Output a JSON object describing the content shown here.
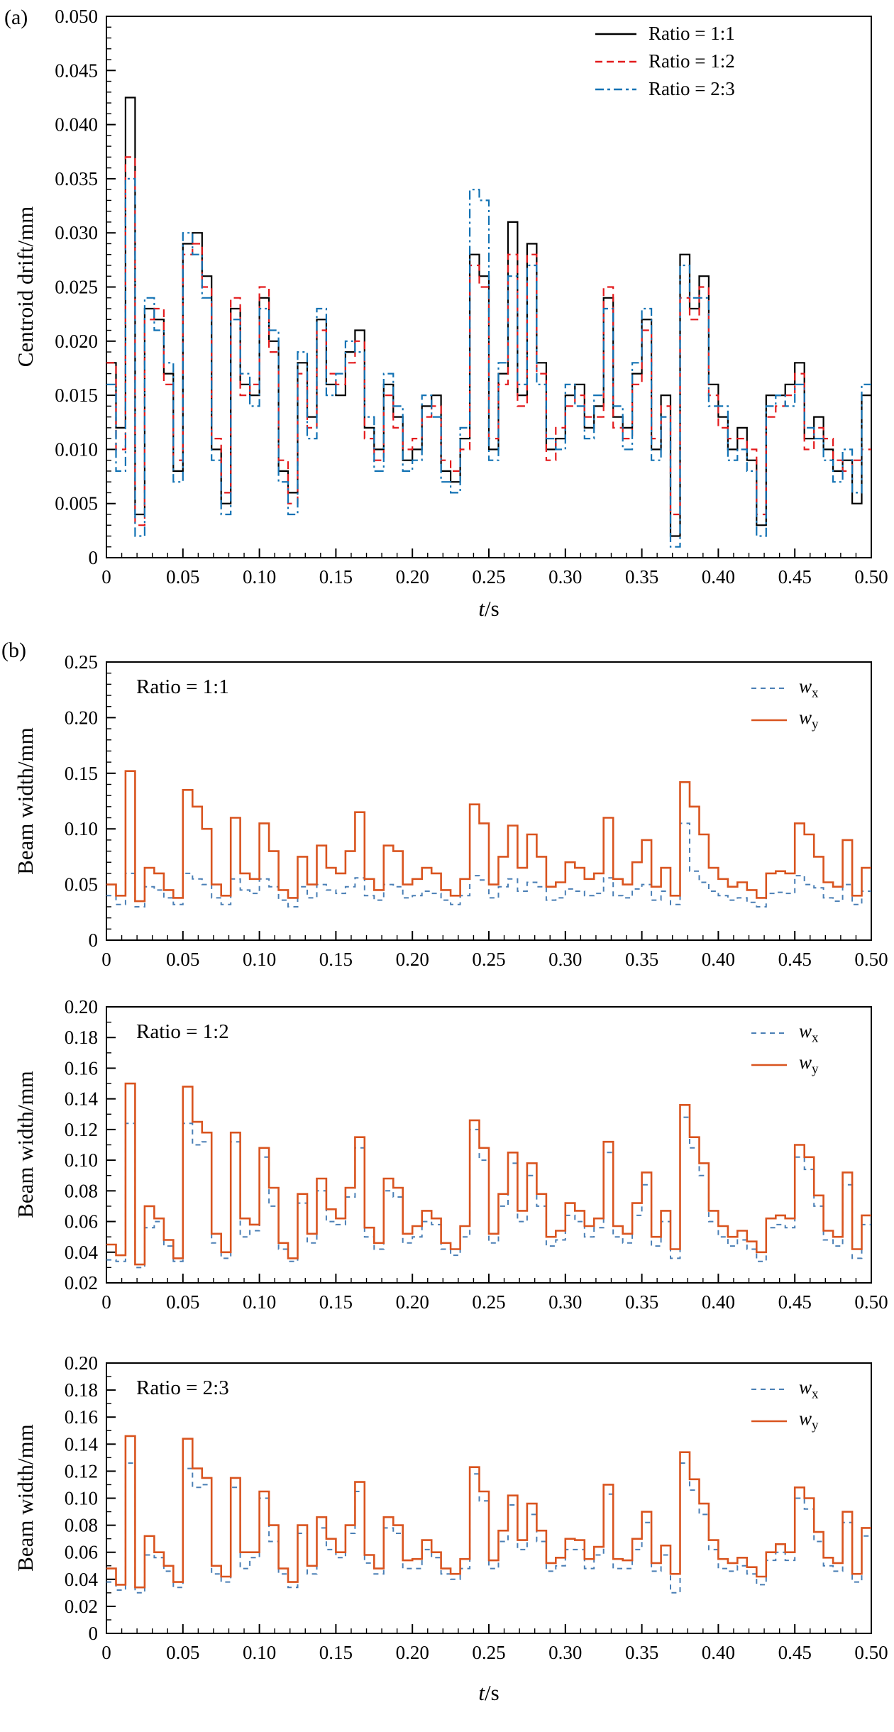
{
  "panels": {
    "a": {
      "label": "(a)"
    },
    "b": {
      "label": "(b)"
    },
    "xlabel": {
      "italic": "t",
      "rest": "/s"
    }
  },
  "colors": {
    "black": "#000000",
    "red": "#e31a1c",
    "blue": "#1272b4",
    "wx_blue": "#4a7fb5",
    "wy_orange": "#d9541f"
  },
  "chart_data": [
    {
      "id": "a",
      "type": "line",
      "step": true,
      "ylabel": "Centroid drift/mm",
      "xlabel": "t/s",
      "xlim": [
        0,
        0.5
      ],
      "ylim": [
        0,
        0.05
      ],
      "x_step": 0.00625,
      "xticks": [
        "0",
        "0.05",
        "0.10",
        "0.15",
        "0.20",
        "0.25",
        "0.30",
        "0.35",
        "0.40",
        "0.45",
        "0.50"
      ],
      "yticks": [
        "0",
        "0.005",
        "0.010",
        "0.015",
        "0.020",
        "0.025",
        "0.030",
        "0.035",
        "0.040",
        "0.045",
        "0.050"
      ],
      "legend_position": "top-right",
      "series": [
        {
          "name": "Ratio = 1:1",
          "color": "#000000",
          "dash": "",
          "legend_dash": "",
          "width": 2.2,
          "values": [
            0.018,
            0.012,
            0.0425,
            0.004,
            0.023,
            0.022,
            0.017,
            0.008,
            0.029,
            0.03,
            0.026,
            0.01,
            0.005,
            0.023,
            0.016,
            0.015,
            0.024,
            0.02,
            0.008,
            0.006,
            0.018,
            0.013,
            0.022,
            0.016,
            0.015,
            0.019,
            0.021,
            0.012,
            0.01,
            0.016,
            0.013,
            0.009,
            0.01,
            0.014,
            0.015,
            0.008,
            0.007,
            0.011,
            0.028,
            0.026,
            0.01,
            0.017,
            0.031,
            0.015,
            0.029,
            0.018,
            0.01,
            0.011,
            0.015,
            0.016,
            0.012,
            0.014,
            0.024,
            0.013,
            0.012,
            0.017,
            0.022,
            0.01,
            0.015,
            0.002,
            0.028,
            0.023,
            0.026,
            0.016,
            0.013,
            0.01,
            0.012,
            0.009,
            0.003,
            0.015,
            0.015,
            0.016,
            0.018,
            0.011,
            0.013,
            0.01,
            0.008,
            0.009,
            0.005,
            0.015
          ]
        },
        {
          "name": "Ratio = 1:2",
          "color": "#e31a1c",
          "dash": "11 7",
          "legend_dash": "10 6",
          "width": 2.2,
          "values": [
            0.018,
            0.01,
            0.037,
            0.003,
            0.022,
            0.023,
            0.016,
            0.009,
            0.028,
            0.029,
            0.025,
            0.011,
            0.006,
            0.024,
            0.015,
            0.016,
            0.025,
            0.019,
            0.009,
            0.005,
            0.017,
            0.012,
            0.021,
            0.017,
            0.016,
            0.018,
            0.02,
            0.011,
            0.009,
            0.015,
            0.012,
            0.01,
            0.011,
            0.013,
            0.014,
            0.009,
            0.008,
            0.01,
            0.027,
            0.025,
            0.011,
            0.016,
            0.028,
            0.014,
            0.028,
            0.017,
            0.009,
            0.012,
            0.014,
            0.015,
            0.013,
            0.013,
            0.025,
            0.012,
            0.011,
            0.016,
            0.021,
            0.011,
            0.014,
            0.004,
            0.024,
            0.022,
            0.025,
            0.015,
            0.012,
            0.011,
            0.011,
            0.01,
            0.004,
            0.013,
            0.014,
            0.015,
            0.017,
            0.01,
            0.012,
            0.011,
            0.009,
            0.008,
            0.009,
            0.01
          ]
        },
        {
          "name": "Ratio = 2:3",
          "color": "#1272b4",
          "dash": "13 5 3 5",
          "legend_dash": "12 5 4 5",
          "width": 2.2,
          "values": [
            0.016,
            0.008,
            0.035,
            0.002,
            0.024,
            0.021,
            0.018,
            0.007,
            0.03,
            0.028,
            0.024,
            0.009,
            0.004,
            0.022,
            0.017,
            0.014,
            0.023,
            0.021,
            0.007,
            0.004,
            0.019,
            0.011,
            0.023,
            0.015,
            0.017,
            0.02,
            0.019,
            0.013,
            0.008,
            0.017,
            0.014,
            0.008,
            0.009,
            0.015,
            0.013,
            0.007,
            0.006,
            0.012,
            0.034,
            0.033,
            0.009,
            0.018,
            0.026,
            0.016,
            0.027,
            0.016,
            0.011,
            0.01,
            0.016,
            0.014,
            0.011,
            0.015,
            0.023,
            0.014,
            0.01,
            0.018,
            0.023,
            0.009,
            0.013,
            0.001,
            0.027,
            0.024,
            0.024,
            0.014,
            0.014,
            0.009,
            0.01,
            0.008,
            0.002,
            0.014,
            0.015,
            0.014,
            0.016,
            0.012,
            0.011,
            0.009,
            0.007,
            0.01,
            0.006,
            0.016
          ]
        }
      ]
    },
    {
      "id": "b1",
      "type": "line",
      "step": true,
      "annotation": "Ratio = 1:1",
      "ylabel": "Beam width/mm",
      "xlabel": "t/s",
      "xlim": [
        0,
        0.5
      ],
      "ylim": [
        0,
        0.25
      ],
      "x_step": 0.00625,
      "xticks": [
        "0",
        "0.05",
        "0.10",
        "0.15",
        "0.20",
        "0.25",
        "0.30",
        "0.35",
        "0.40",
        "0.45",
        "0.50"
      ],
      "yticks": [
        "0",
        "0.05",
        "0.10",
        "0.15",
        "0.20",
        "0.25"
      ],
      "legend_position": "top-right",
      "series": [
        {
          "name": "wx",
          "label_base": "w",
          "label_sub": "x",
          "color": "#4a7fb5",
          "dash": "7 6",
          "legend_dash": "7 6",
          "width": 2,
          "values": [
            0.04,
            0.032,
            0.06,
            0.03,
            0.048,
            0.045,
            0.038,
            0.032,
            0.06,
            0.055,
            0.05,
            0.038,
            0.032,
            0.055,
            0.045,
            0.042,
            0.055,
            0.048,
            0.036,
            0.03,
            0.048,
            0.038,
            0.05,
            0.045,
            0.042,
            0.048,
            0.056,
            0.04,
            0.036,
            0.05,
            0.048,
            0.038,
            0.04,
            0.044,
            0.042,
            0.036,
            0.032,
            0.04,
            0.058,
            0.054,
            0.038,
            0.048,
            0.055,
            0.044,
            0.052,
            0.048,
            0.036,
            0.038,
            0.046,
            0.044,
            0.04,
            0.042,
            0.056,
            0.04,
            0.038,
            0.046,
            0.05,
            0.036,
            0.044,
            0.032,
            0.105,
            0.062,
            0.052,
            0.044,
            0.04,
            0.036,
            0.038,
            0.034,
            0.03,
            0.042,
            0.043,
            0.042,
            0.058,
            0.05,
            0.047,
            0.038,
            0.035,
            0.05,
            0.032,
            0.044
          ]
        },
        {
          "name": "wy",
          "label_base": "w",
          "label_sub": "y",
          "color": "#d9541f",
          "dash": "",
          "legend_dash": "",
          "width": 2.6,
          "values": [
            0.05,
            0.04,
            0.152,
            0.035,
            0.065,
            0.06,
            0.045,
            0.038,
            0.135,
            0.12,
            0.1,
            0.05,
            0.04,
            0.11,
            0.06,
            0.055,
            0.105,
            0.08,
            0.045,
            0.038,
            0.075,
            0.05,
            0.085,
            0.065,
            0.06,
            0.08,
            0.115,
            0.055,
            0.045,
            0.085,
            0.08,
            0.05,
            0.055,
            0.065,
            0.06,
            0.045,
            0.04,
            0.055,
            0.122,
            0.105,
            0.05,
            0.075,
            0.103,
            0.065,
            0.095,
            0.075,
            0.048,
            0.052,
            0.07,
            0.065,
            0.055,
            0.06,
            0.11,
            0.055,
            0.05,
            0.07,
            0.09,
            0.048,
            0.065,
            0.04,
            0.142,
            0.12,
            0.095,
            0.065,
            0.055,
            0.048,
            0.052,
            0.045,
            0.038,
            0.06,
            0.062,
            0.06,
            0.105,
            0.095,
            0.075,
            0.052,
            0.048,
            0.09,
            0.04,
            0.065
          ]
        }
      ]
    },
    {
      "id": "b2",
      "type": "line",
      "step": true,
      "annotation": "Ratio = 1:2",
      "ylabel": "Beam width/mm",
      "xlabel": "t/s",
      "xlim": [
        0,
        0.5
      ],
      "ylim": [
        0.02,
        0.2
      ],
      "x_step": 0.00625,
      "xticks": [
        "0",
        "0.05",
        "0.10",
        "0.15",
        "0.20",
        "0.25",
        "0.30",
        "0.35",
        "0.40",
        "0.45",
        "0.50"
      ],
      "yticks": [
        "0.02",
        "0.04",
        "0.06",
        "0.08",
        "0.10",
        "0.12",
        "0.14",
        "0.16",
        "0.18",
        "0.20"
      ],
      "legend_position": "top-right",
      "series": [
        {
          "name": "wx",
          "label_base": "w",
          "label_sub": "x",
          "color": "#4a7fb5",
          "dash": "7 6",
          "legend_dash": "7 6",
          "width": 2,
          "values": [
            0.035,
            0.034,
            0.124,
            0.03,
            0.056,
            0.06,
            0.044,
            0.034,
            0.124,
            0.11,
            0.112,
            0.046,
            0.036,
            0.112,
            0.05,
            0.054,
            0.102,
            0.07,
            0.042,
            0.034,
            0.072,
            0.046,
            0.08,
            0.06,
            0.058,
            0.076,
            0.108,
            0.05,
            0.042,
            0.08,
            0.076,
            0.046,
            0.05,
            0.06,
            0.058,
            0.042,
            0.038,
            0.05,
            0.12,
            0.1,
            0.046,
            0.07,
            0.098,
            0.06,
            0.09,
            0.07,
            0.044,
            0.048,
            0.064,
            0.06,
            0.05,
            0.056,
            0.105,
            0.05,
            0.046,
            0.064,
            0.084,
            0.044,
            0.06,
            0.036,
            0.128,
            0.108,
            0.09,
            0.06,
            0.05,
            0.044,
            0.048,
            0.042,
            0.034,
            0.056,
            0.058,
            0.056,
            0.102,
            0.094,
            0.07,
            0.048,
            0.044,
            0.084,
            0.036,
            0.058
          ]
        },
        {
          "name": "wy",
          "label_base": "w",
          "label_sub": "y",
          "color": "#d9541f",
          "dash": "",
          "legend_dash": "",
          "width": 2.6,
          "values": [
            0.045,
            0.038,
            0.15,
            0.032,
            0.07,
            0.062,
            0.048,
            0.036,
            0.148,
            0.125,
            0.118,
            0.052,
            0.04,
            0.118,
            0.062,
            0.058,
            0.108,
            0.082,
            0.046,
            0.036,
            0.078,
            0.052,
            0.088,
            0.068,
            0.062,
            0.082,
            0.115,
            0.056,
            0.046,
            0.088,
            0.082,
            0.052,
            0.057,
            0.067,
            0.062,
            0.046,
            0.042,
            0.057,
            0.126,
            0.108,
            0.052,
            0.078,
            0.105,
            0.067,
            0.098,
            0.078,
            0.05,
            0.054,
            0.072,
            0.067,
            0.057,
            0.062,
            0.112,
            0.057,
            0.052,
            0.072,
            0.092,
            0.05,
            0.067,
            0.042,
            0.136,
            0.115,
            0.098,
            0.067,
            0.057,
            0.05,
            0.054,
            0.047,
            0.04,
            0.062,
            0.064,
            0.062,
            0.11,
            0.102,
            0.077,
            0.054,
            0.05,
            0.092,
            0.042,
            0.064
          ]
        }
      ]
    },
    {
      "id": "b3",
      "type": "line",
      "step": true,
      "annotation": "Ratio = 2:3",
      "ylabel": "Beam width/mm",
      "xlabel": "t/s",
      "xlim": [
        0,
        0.5
      ],
      "ylim": [
        0,
        0.2
      ],
      "x_step": 0.00625,
      "xticks": [
        "0",
        "0.05",
        "0.10",
        "0.15",
        "0.20",
        "0.25",
        "0.30",
        "0.35",
        "0.40",
        "0.45",
        "0.50"
      ],
      "yticks": [
        "0",
        "0.02",
        "0.04",
        "0.06",
        "0.08",
        "0.10",
        "0.12",
        "0.14",
        "0.16",
        "0.18",
        "0.20"
      ],
      "legend_position": "top-right",
      "series": [
        {
          "name": "wx",
          "label_base": "w",
          "label_sub": "x",
          "color": "#4a7fb5",
          "dash": "7 6",
          "legend_dash": "7 6",
          "width": 2,
          "values": [
            0.038,
            0.032,
            0.126,
            0.03,
            0.058,
            0.056,
            0.046,
            0.034,
            0.122,
            0.108,
            0.11,
            0.044,
            0.038,
            0.108,
            0.048,
            0.056,
            0.1,
            0.068,
            0.044,
            0.034,
            0.074,
            0.044,
            0.078,
            0.062,
            0.056,
            0.074,
            0.105,
            0.052,
            0.044,
            0.078,
            0.074,
            0.048,
            0.048,
            0.062,
            0.056,
            0.044,
            0.04,
            0.048,
            0.118,
            0.098,
            0.048,
            0.068,
            0.095,
            0.062,
            0.088,
            0.068,
            0.046,
            0.05,
            0.062,
            0.062,
            0.048,
            0.058,
            0.103,
            0.048,
            0.048,
            0.062,
            0.082,
            0.046,
            0.058,
            0.03,
            0.126,
            0.106,
            0.088,
            0.062,
            0.048,
            0.046,
            0.05,
            0.044,
            0.036,
            0.054,
            0.06,
            0.054,
            0.1,
            0.092,
            0.068,
            0.05,
            0.046,
            0.082,
            0.038,
            0.072
          ]
        },
        {
          "name": "wy",
          "label_base": "w",
          "label_sub": "y",
          "color": "#d9541f",
          "dash": "",
          "legend_dash": "",
          "width": 2.6,
          "values": [
            0.048,
            0.036,
            0.146,
            0.034,
            0.072,
            0.06,
            0.05,
            0.038,
            0.144,
            0.122,
            0.115,
            0.05,
            0.042,
            0.115,
            0.06,
            0.06,
            0.105,
            0.08,
            0.048,
            0.038,
            0.08,
            0.05,
            0.086,
            0.07,
            0.06,
            0.08,
            0.112,
            0.058,
            0.048,
            0.086,
            0.08,
            0.054,
            0.055,
            0.069,
            0.06,
            0.048,
            0.044,
            0.055,
            0.123,
            0.105,
            0.054,
            0.076,
            0.102,
            0.069,
            0.096,
            0.076,
            0.052,
            0.056,
            0.07,
            0.069,
            0.055,
            0.064,
            0.11,
            0.055,
            0.054,
            0.07,
            0.09,
            0.052,
            0.065,
            0.044,
            0.134,
            0.114,
            0.096,
            0.069,
            0.055,
            0.052,
            0.056,
            0.049,
            0.042,
            0.06,
            0.066,
            0.06,
            0.108,
            0.1,
            0.075,
            0.056,
            0.052,
            0.09,
            0.044,
            0.078
          ]
        }
      ]
    }
  ]
}
